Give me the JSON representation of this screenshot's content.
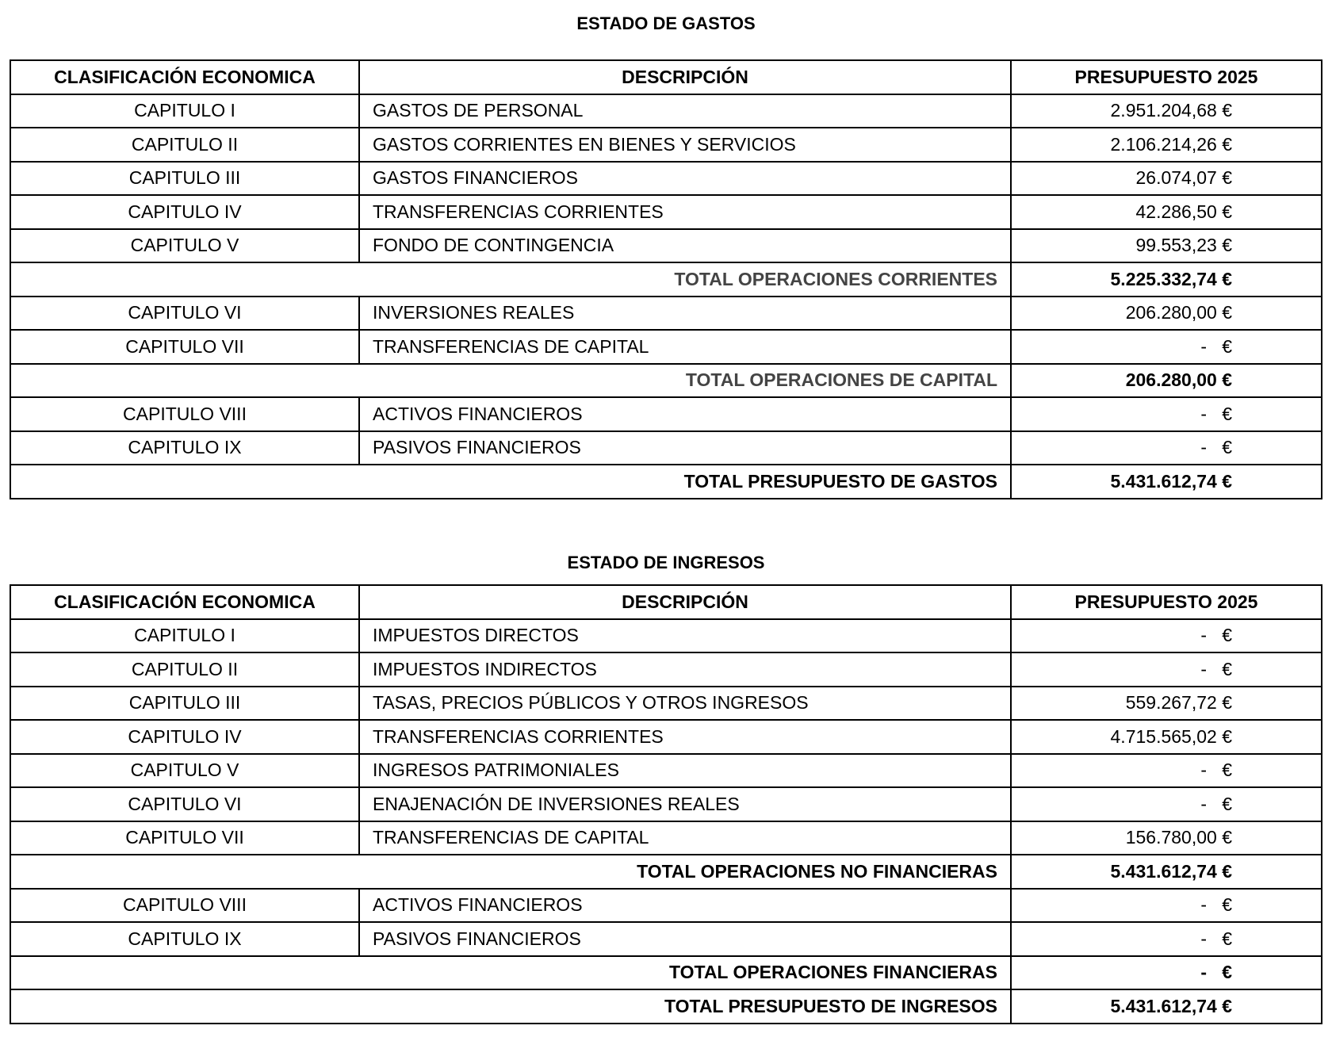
{
  "gastos": {
    "title": "ESTADO DE GASTOS",
    "headers": [
      "CLASIFICACIÓN ECONOMICA",
      "DESCRIPCIÓN",
      "PRESUPUESTO 2025"
    ],
    "rows": [
      {
        "code": "CAPITULO I",
        "desc": "GASTOS DE PERSONAL",
        "amount": "2.951.204,68 €"
      },
      {
        "code": "CAPITULO II",
        "desc": "GASTOS CORRIENTES EN BIENES Y SERVICIOS",
        "amount": "2.106.214,26 €"
      },
      {
        "code": "CAPITULO III",
        "desc": "GASTOS FINANCIEROS",
        "amount": "26.074,07 €"
      },
      {
        "code": "CAPITULO IV",
        "desc": "TRANSFERENCIAS CORRIENTES",
        "amount": "42.286,50 €"
      },
      {
        "code": "CAPITULO V",
        "desc": "FONDO DE CONTINGENCIA",
        "amount": "99.553,23 €"
      },
      {
        "total": "TOTAL OPERACIONES CORRIENTES",
        "amount": "5.225.332,74 €",
        "sub": true
      },
      {
        "code": "CAPITULO VI",
        "desc": "INVERSIONES REALES",
        "amount": "206.280,00 €"
      },
      {
        "code": "CAPITULO VII",
        "desc": "TRANSFERENCIAS DE CAPITAL",
        "amount": "-   €"
      },
      {
        "total": "TOTAL OPERACIONES DE CAPITAL",
        "amount": "206.280,00 €",
        "sub": true
      },
      {
        "code": "CAPITULO VIII",
        "desc": "ACTIVOS FINANCIEROS",
        "amount": "-   €"
      },
      {
        "code": "CAPITULO IX",
        "desc": "PASIVOS FINANCIEROS",
        "amount": "-   €"
      },
      {
        "total": "TOTAL PRESUPUESTO DE GASTOS",
        "amount": "5.431.612,74 €"
      }
    ]
  },
  "ingresos": {
    "title": "ESTADO DE INGRESOS",
    "headers": [
      "CLASIFICACIÓN ECONOMICA",
      "DESCRIPCIÓN",
      "PRESUPUESTO 2025"
    ],
    "rows": [
      {
        "code": "CAPITULO I",
        "desc": "IMPUESTOS DIRECTOS",
        "amount": "-   €"
      },
      {
        "code": "CAPITULO II",
        "desc": "IMPUESTOS INDIRECTOS",
        "amount": "-   €"
      },
      {
        "code": "CAPITULO III",
        "desc": "TASAS, PRECIOS PÚBLICOS Y OTROS INGRESOS",
        "amount": "559.267,72 €"
      },
      {
        "code": "CAPITULO IV",
        "desc": "TRANSFERENCIAS CORRIENTES",
        "amount": "4.715.565,02 €"
      },
      {
        "code": "CAPITULO V",
        "desc": "INGRESOS PATRIMONIALES",
        "amount": "-   €"
      },
      {
        "code": "CAPITULO VI",
        "desc": "ENAJENACIÓN DE INVERSIONES REALES",
        "amount": "-   €"
      },
      {
        "code": "CAPITULO VII",
        "desc": "TRANSFERENCIAS DE CAPITAL",
        "amount": "156.780,00 €"
      },
      {
        "total": "TOTAL OPERACIONES NO FINANCIERAS",
        "amount": "5.431.612,74 €"
      },
      {
        "code": "CAPITULO VIII",
        "desc": "ACTIVOS FINANCIEROS",
        "amount": "-   €"
      },
      {
        "code": "CAPITULO IX",
        "desc": "PASIVOS FINANCIEROS",
        "amount": "-   €"
      },
      {
        "total": "TOTAL OPERACIONES FINANCIERAS",
        "amount": "-   €"
      },
      {
        "total": "TOTAL PRESUPUESTO DE INGRESOS",
        "amount": "5.431.612,74 €"
      }
    ]
  }
}
